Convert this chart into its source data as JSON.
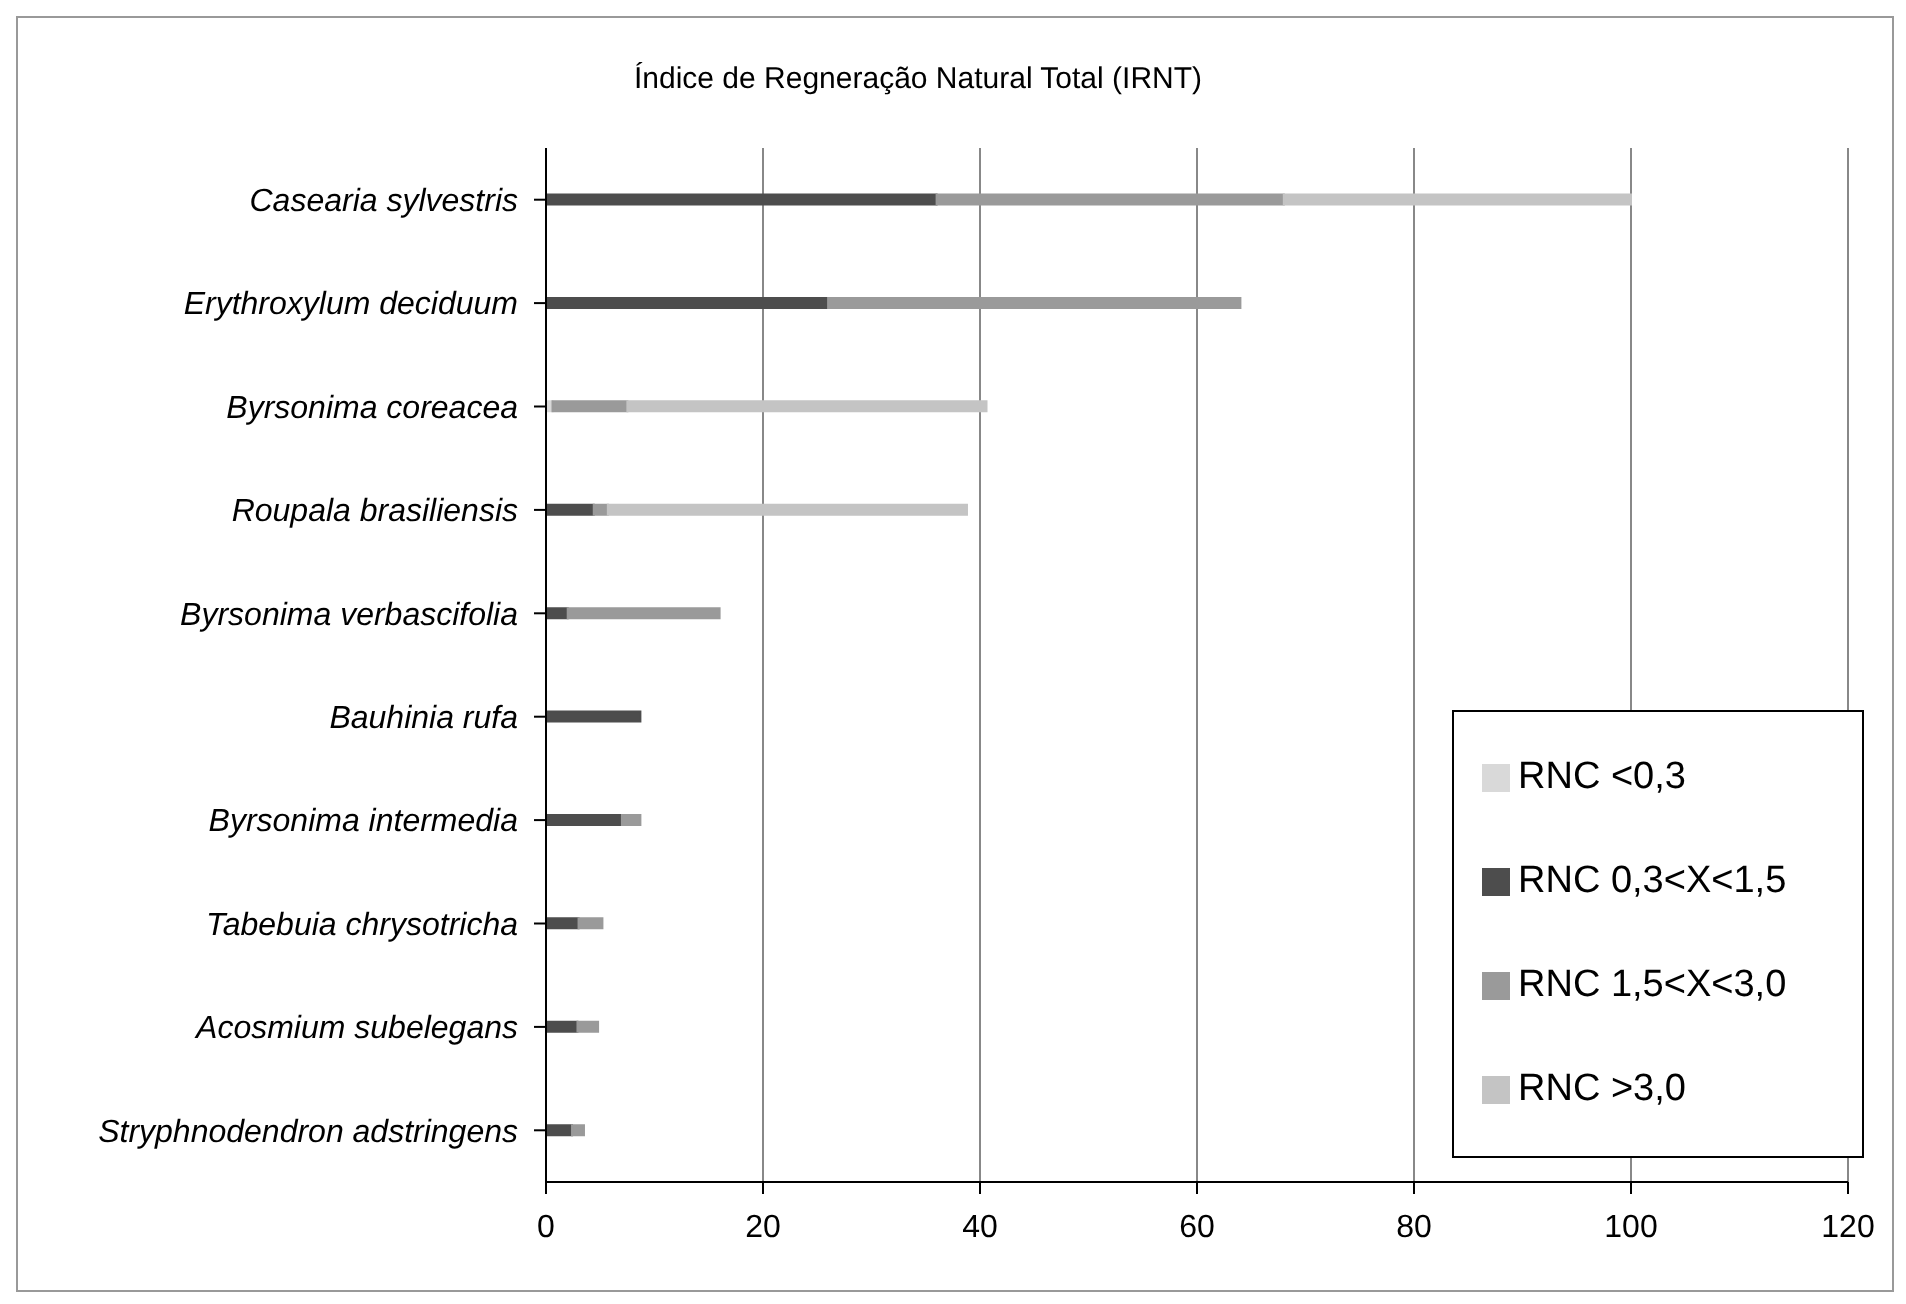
{
  "chart_data": {
    "type": "bar",
    "orientation": "horizontal",
    "stacked": true,
    "title": "Índice de Regneração Natural Total (IRNT)",
    "categories": [
      "Casearia sylvestris",
      "Erythroxylum deciduum",
      "Byrsonima coreacea",
      "Roupala brasiliensis",
      "Byrsonima verbascifolia",
      "Bauhinia rufa",
      "Byrsonima intermedia",
      "Tabebuia chrysotricha",
      "Acosmium subelegans",
      "Stryphnodendron adstringens"
    ],
    "series": [
      {
        "name": "RNC <0,3",
        "color": "#d9d9d9",
        "values": [
          0,
          0,
          0.6,
          0,
          0,
          0,
          0,
          0,
          0,
          0
        ]
      },
      {
        "name": "RNC 0,3<X<1,5",
        "color": "#4d4d4d",
        "values": [
          36,
          26,
          0,
          4.4,
          2,
          8.7,
          7,
          3,
          2.9,
          2.4
        ]
      },
      {
        "name": "RNC 1,5<X<3,0",
        "color": "#9a9a9a",
        "values": [
          32,
          38,
          6.9,
          1.3,
          14,
          0,
          1.7,
          2.2,
          1.9,
          1.1
        ]
      },
      {
        "name": "RNC >3,0",
        "color": "#c4c4c4",
        "values": [
          32,
          0,
          33.1,
          33.1,
          0,
          0,
          0,
          0,
          0,
          0
        ]
      }
    ],
    "xlim": [
      0,
      120
    ],
    "xticks": [
      0,
      20,
      40,
      60,
      80,
      100,
      120
    ],
    "grid": "x",
    "legend": "bottom right"
  }
}
